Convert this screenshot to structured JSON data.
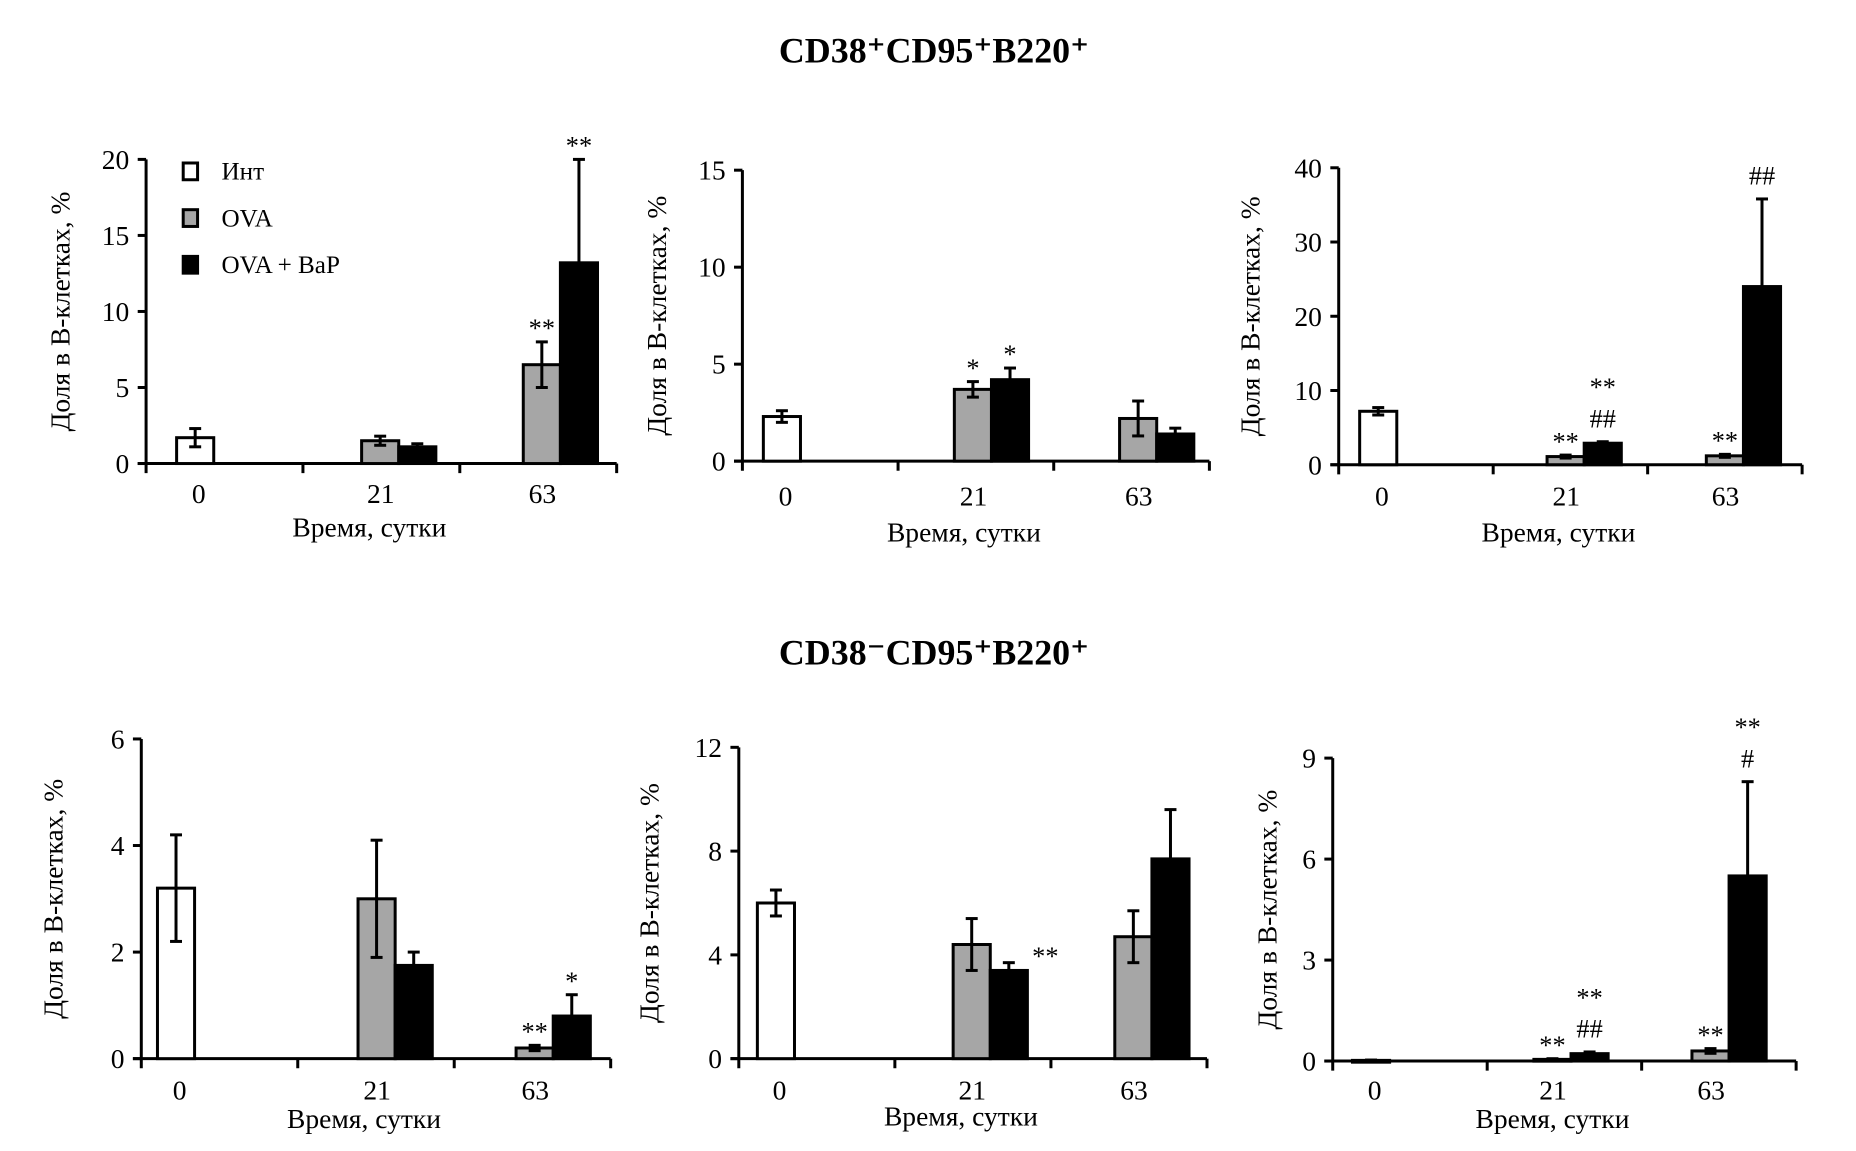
{
  "section_titles": [
    "CD38⁺CD95⁺B220⁺",
    "CD38⁻CD95⁺B220⁺"
  ],
  "legend": {
    "entries": [
      "Инт",
      "OVA",
      "OVA + BaP"
    ],
    "placement": "top-left"
  },
  "colors": {
    "Инт": "#ffffff",
    "OVA": "#a6a6a6",
    "OVA + BaP": "#000000",
    "outline": "#000000"
  },
  "chart_data": [
    {
      "type": "bar",
      "section": "CD38⁺CD95⁺B220⁺",
      "categories": [
        "0",
        "21",
        "63"
      ],
      "xlabel": "Время, сутки",
      "ylabel": "Доля в В-клетках, %",
      "ylim": [
        0,
        20
      ],
      "yticks": [
        0,
        5,
        10,
        15,
        20
      ],
      "grid": false,
      "has_legend": true,
      "series": [
        {
          "name": "Инт",
          "values": [
            1.7,
            null,
            null
          ],
          "errors": [
            0.6,
            null,
            null
          ]
        },
        {
          "name": "OVA",
          "values": [
            null,
            1.5,
            6.5
          ],
          "errors": [
            null,
            0.3,
            1.5
          ]
        },
        {
          "name": "OVA + BaP",
          "values": [
            null,
            1.1,
            13.2
          ],
          "errors": [
            null,
            0.2,
            6.8
          ]
        }
      ],
      "annotations": [
        {
          "category": "63",
          "series": "OVA",
          "labels": [
            "**"
          ]
        },
        {
          "category": "63",
          "series": "OVA + BaP",
          "labels": [
            "**"
          ]
        }
      ]
    },
    {
      "type": "bar",
      "section": "CD38⁺CD95⁺B220⁺",
      "categories": [
        "0",
        "21",
        "63"
      ],
      "xlabel": "Время, сутки",
      "ylabel": "Доля в В-клетках, %",
      "ylim": [
        0,
        15
      ],
      "yticks": [
        0,
        5,
        10,
        15
      ],
      "grid": false,
      "has_legend": false,
      "series": [
        {
          "name": "Инт",
          "values": [
            2.3,
            null,
            null
          ],
          "errors": [
            0.3,
            null,
            null
          ]
        },
        {
          "name": "OVA",
          "values": [
            null,
            3.7,
            2.2
          ],
          "errors": [
            null,
            0.4,
            0.9
          ]
        },
        {
          "name": "OVA + BaP",
          "values": [
            null,
            4.2,
            1.4
          ],
          "errors": [
            null,
            0.6,
            0.3
          ]
        }
      ],
      "annotations": [
        {
          "category": "21",
          "series": "OVA",
          "labels": [
            "*"
          ]
        },
        {
          "category": "21",
          "series": "OVA + BaP",
          "labels": [
            "*"
          ]
        }
      ]
    },
    {
      "type": "bar",
      "section": "CD38⁺CD95⁺B220⁺",
      "categories": [
        "0",
        "21",
        "63"
      ],
      "xlabel": "Время, сутки",
      "ylabel": "Доля в В-клетках, %",
      "ylim": [
        0,
        40
      ],
      "yticks": [
        0,
        10,
        20,
        30,
        40
      ],
      "grid": false,
      "has_legend": false,
      "series": [
        {
          "name": "Инт",
          "values": [
            7.2,
            null,
            null
          ],
          "errors": [
            0.5,
            null,
            null
          ]
        },
        {
          "name": "OVA",
          "values": [
            null,
            1.1,
            1.2
          ],
          "errors": [
            null,
            0.2,
            0.2
          ]
        },
        {
          "name": "OVA + BaP",
          "values": [
            null,
            2.9,
            24.0
          ],
          "errors": [
            null,
            0.2,
            11.8
          ]
        }
      ],
      "annotations": [
        {
          "category": "21",
          "series": "OVA",
          "labels": [
            "**"
          ]
        },
        {
          "category": "21",
          "series": "OVA + BaP",
          "labels": [
            "##",
            "**"
          ]
        },
        {
          "category": "63",
          "series": "OVA",
          "labels": [
            "**"
          ]
        },
        {
          "category": "63",
          "series": "OVA + BaP",
          "labels": [
            "##"
          ]
        }
      ]
    },
    {
      "type": "bar",
      "section": "CD38⁻CD95⁺B220⁺",
      "categories": [
        "0",
        "21",
        "63"
      ],
      "xlabel": "Время, сутки",
      "ylabel": "Доля в В-клетках, %",
      "ylim": [
        0,
        6
      ],
      "yticks": [
        0,
        2,
        4,
        6
      ],
      "grid": false,
      "has_legend": false,
      "series": [
        {
          "name": "Инт",
          "values": [
            3.2,
            null,
            null
          ],
          "errors": [
            1.0,
            null,
            null
          ]
        },
        {
          "name": "OVA",
          "values": [
            null,
            3.0,
            0.2
          ],
          "errors": [
            null,
            1.1,
            0.05
          ]
        },
        {
          "name": "OVA + BaP",
          "values": [
            null,
            1.75,
            0.8
          ],
          "errors": [
            null,
            0.25,
            0.4
          ]
        }
      ],
      "annotations": [
        {
          "category": "63",
          "series": "OVA",
          "labels": [
            "**"
          ]
        },
        {
          "category": "63",
          "series": "OVA + BaP",
          "labels": [
            "*"
          ]
        }
      ]
    },
    {
      "type": "bar",
      "section": "CD38⁻CD95⁺B220⁺",
      "categories": [
        "0",
        "21",
        "63"
      ],
      "xlabel": "Время, сутки",
      "ylabel": "Доля в В-клетках, %",
      "ylim": [
        0,
        12
      ],
      "yticks": [
        0,
        4,
        8,
        12
      ],
      "grid": false,
      "has_legend": false,
      "series": [
        {
          "name": "Инт",
          "values": [
            6.0,
            null,
            null
          ],
          "errors": [
            0.5,
            null,
            null
          ]
        },
        {
          "name": "OVA",
          "values": [
            null,
            4.4,
            4.7
          ],
          "errors": [
            null,
            1.0,
            1.0
          ]
        },
        {
          "name": "OVA + BaP",
          "values": [
            null,
            3.4,
            7.7
          ],
          "errors": [
            null,
            0.3,
            1.9
          ]
        }
      ],
      "annotations": [
        {
          "category": "21",
          "series": "OVA + BaP",
          "labels": [
            "**"
          ],
          "side": "right"
        }
      ]
    },
    {
      "type": "bar",
      "section": "CD38⁻CD95⁺B220⁺",
      "categories": [
        "0",
        "21",
        "63"
      ],
      "xlabel": "Время, сутки",
      "ylabel": "Доля в В-клетках, %",
      "ylim": [
        0,
        9
      ],
      "yticks": [
        0,
        3,
        6,
        9
      ],
      "grid": false,
      "has_legend": false,
      "series": [
        {
          "name": "Инт",
          "values": [
            0.02,
            null,
            null
          ],
          "errors": [
            0.01,
            null,
            null
          ]
        },
        {
          "name": "OVA",
          "values": [
            null,
            0.05,
            0.3
          ],
          "errors": [
            null,
            0.02,
            0.07
          ]
        },
        {
          "name": "OVA + BaP",
          "values": [
            null,
            0.22,
            5.5
          ],
          "errors": [
            null,
            0.05,
            2.8
          ]
        }
      ],
      "annotations": [
        {
          "category": "21",
          "series": "OVA",
          "labels": [
            "**"
          ]
        },
        {
          "category": "21",
          "series": "OVA + BaP",
          "labels": [
            "##",
            "**"
          ]
        },
        {
          "category": "63",
          "series": "OVA",
          "labels": [
            "**"
          ]
        },
        {
          "category": "63",
          "series": "OVA + BaP",
          "labels": [
            "#",
            "**"
          ]
        }
      ]
    }
  ]
}
